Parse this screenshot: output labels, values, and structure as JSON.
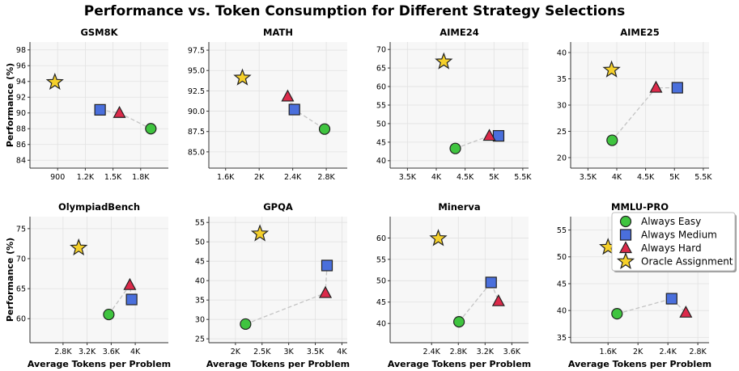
{
  "figure": {
    "title": "Performance vs. Token Consumption for Different Strategy Selections",
    "ylabel": "Performance (%)",
    "xlabel": "Average Tokens per Problem"
  },
  "legend": {
    "position": "top-right of MMLU-PRO panel",
    "items": [
      {
        "key": "easy",
        "label": "Always Easy",
        "marker": "circle",
        "color": "#3fc43f"
      },
      {
        "key": "medium",
        "label": "Always Medium",
        "marker": "square",
        "color": "#4a6fdc"
      },
      {
        "key": "hard",
        "label": "Always Hard",
        "marker": "triangle",
        "color": "#dc2a4a"
      },
      {
        "key": "oracle",
        "label": "Oracle Assignment",
        "marker": "star",
        "color": "#f5d02b"
      }
    ]
  },
  "chart_data": [
    {
      "type": "scatter",
      "title": "GSM8K",
      "xlim": [
        600,
        2100
      ],
      "ylim": [
        83,
        99
      ],
      "xticks": [
        900,
        1200,
        1500,
        1800
      ],
      "xtick_labels": [
        "900",
        "1.2K",
        "1.5K",
        "1.8K"
      ],
      "yticks": [
        84,
        86,
        88,
        90,
        92,
        94,
        96,
        98
      ],
      "ytick_labels": [
        "84",
        "86",
        "88",
        "90",
        "92",
        "94",
        "96",
        "98"
      ],
      "show_ylabel": true,
      "show_xlabel": false,
      "points": {
        "oracle": [
          870,
          93.9
        ],
        "medium": [
          1360,
          90.4
        ],
        "hard": [
          1570,
          90.0
        ],
        "easy": [
          1910,
          88.0
        ]
      }
    },
    {
      "type": "scatter",
      "title": "MATH",
      "xlim": [
        1400,
        3050
      ],
      "ylim": [
        83,
        98.5
      ],
      "xticks": [
        1600,
        2000,
        2400,
        2800
      ],
      "xtick_labels": [
        "1.6K",
        "2K",
        "2.4K",
        "2.8K"
      ],
      "yticks": [
        85,
        87.5,
        90,
        92.5,
        95,
        97.5
      ],
      "ytick_labels": [
        "85.0",
        "87.5",
        "90.0",
        "92.5",
        "95.0",
        "97.5"
      ],
      "show_ylabel": false,
      "show_xlabel": false,
      "points": {
        "oracle": [
          1800,
          94.1
        ],
        "hard": [
          2340,
          91.8
        ],
        "medium": [
          2420,
          90.2
        ],
        "easy": [
          2780,
          87.8
        ]
      }
    },
    {
      "type": "scatter",
      "title": "AIME24",
      "xlim": [
        3200,
        5600
      ],
      "ylim": [
        38,
        72
      ],
      "xticks": [
        3500,
        4000,
        4500,
        5000,
        5500
      ],
      "xtick_labels": [
        "3.5K",
        "4K",
        "4.5K",
        "5K",
        "5.5K"
      ],
      "yticks": [
        40,
        45,
        50,
        55,
        60,
        65,
        70
      ],
      "ytick_labels": [
        "40",
        "45",
        "50",
        "55",
        "60",
        "65",
        "70"
      ],
      "show_ylabel": false,
      "show_xlabel": false,
      "points": {
        "oracle": [
          4130,
          66.7
        ],
        "easy": [
          4330,
          43.3
        ],
        "hard": [
          4920,
          46.7
        ],
        "medium": [
          5080,
          46.7
        ]
      }
    },
    {
      "type": "scatter",
      "title": "AIME25",
      "xlim": [
        3200,
        5600
      ],
      "ylim": [
        18,
        42
      ],
      "xticks": [
        3500,
        4000,
        4500,
        5000,
        5500
      ],
      "xtick_labels": [
        "3.5K",
        "4K",
        "4.5K",
        "5K",
        "5.5K"
      ],
      "yticks": [
        20,
        25,
        30,
        35,
        40
      ],
      "ytick_labels": [
        "20",
        "25",
        "30",
        "35",
        "40"
      ],
      "show_ylabel": false,
      "show_xlabel": false,
      "points": {
        "oracle": [
          3910,
          36.7
        ],
        "easy": [
          3920,
          23.3
        ],
        "hard": [
          4680,
          33.3
        ],
        "medium": [
          5050,
          33.3
        ]
      }
    },
    {
      "type": "scatter",
      "title": "OlympiadBench",
      "xlim": [
        2250,
        4550
      ],
      "ylim": [
        56,
        77
      ],
      "xticks": [
        2800,
        3200,
        3600,
        4000
      ],
      "xtick_labels": [
        "2.8K",
        "3.2K",
        "3.6K",
        "4K"
      ],
      "yticks": [
        60,
        65,
        70,
        75
      ],
      "ytick_labels": [
        "60",
        "65",
        "70",
        "75"
      ],
      "show_ylabel": true,
      "show_xlabel": true,
      "points": {
        "oracle": [
          3060,
          71.8
        ],
        "easy": [
          3560,
          60.7
        ],
        "hard": [
          3910,
          65.6
        ],
        "medium": [
          3940,
          63.2
        ]
      }
    },
    {
      "type": "scatter",
      "title": "GPQA",
      "xlim": [
        1500,
        4100
      ],
      "ylim": [
        24,
        56.5
      ],
      "xticks": [
        2000,
        2500,
        3000,
        3500,
        4000
      ],
      "xtick_labels": [
        "2K",
        "2.5K",
        "3K",
        "3.5K",
        "4K"
      ],
      "yticks": [
        25,
        30,
        35,
        40,
        45,
        50,
        55
      ],
      "ytick_labels": [
        "25",
        "30",
        "35",
        "40",
        "45",
        "50",
        "55"
      ],
      "show_ylabel": false,
      "show_xlabel": true,
      "points": {
        "easy": [
          2190,
          28.8
        ],
        "oracle": [
          2460,
          52.1
        ],
        "hard": [
          3690,
          36.8
        ],
        "medium": [
          3720,
          43.9
        ]
      }
    },
    {
      "type": "scatter",
      "title": "Minerva",
      "xlim": [
        1780,
        3850
      ],
      "ylim": [
        35.5,
        65
      ],
      "xticks": [
        2400,
        2800,
        3200,
        3600
      ],
      "xtick_labels": [
        "2.4K",
        "2.8K",
        "3.2K",
        "3.6K"
      ],
      "yticks": [
        40,
        45,
        50,
        55,
        60
      ],
      "ytick_labels": [
        "40",
        "45",
        "50",
        "55",
        "60"
      ],
      "show_ylabel": false,
      "show_xlabel": true,
      "points": {
        "oracle": [
          2500,
          59.9
        ],
        "easy": [
          2810,
          40.4
        ],
        "medium": [
          3290,
          49.6
        ],
        "hard": [
          3400,
          45.2
        ]
      }
    },
    {
      "type": "scatter",
      "title": "MMLU-PRO",
      "xlim": [
        1100,
        2950
      ],
      "ylim": [
        34,
        57.5
      ],
      "xticks": [
        1600,
        2000,
        2400,
        2800
      ],
      "xtick_labels": [
        "1.6K",
        "2K",
        "2.4K",
        "2.8K"
      ],
      "yticks": [
        35,
        40,
        45,
        50,
        55
      ],
      "ytick_labels": [
        "35",
        "40",
        "45",
        "50",
        "55"
      ],
      "show_ylabel": false,
      "show_xlabel": true,
      "points": {
        "oracle": [
          1600,
          51.8
        ],
        "easy": [
          1720,
          39.4
        ],
        "medium": [
          2450,
          42.2
        ],
        "hard": [
          2640,
          39.6
        ]
      }
    }
  ]
}
